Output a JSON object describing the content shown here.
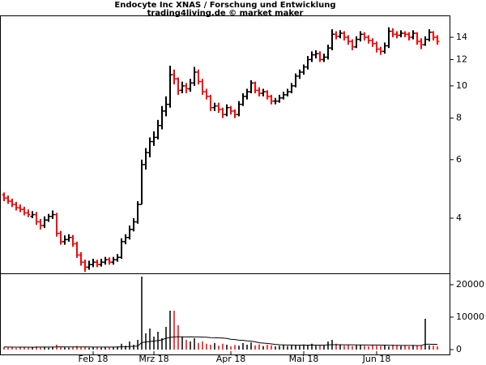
{
  "chart_data": [
    {
      "type": "ohlc",
      "title": "Endocyte Inc XNAS / Forschung und Entwicklung",
      "subtitle": "trading4living.de © market maker",
      "categories": [
        null,
        null,
        null,
        null,
        null,
        null,
        null,
        null,
        null,
        null,
        null,
        null,
        null,
        null,
        null,
        null,
        null,
        null,
        null,
        null,
        null,
        null,
        "Feb 18",
        null,
        null,
        null,
        null,
        null,
        null,
        null,
        null,
        null,
        null,
        null,
        null,
        null,
        null,
        "Mrz 18",
        null,
        null,
        null,
        null,
        null,
        null,
        null,
        null,
        null,
        null,
        null,
        null,
        null,
        null,
        null,
        null,
        null,
        null,
        "Apr 18",
        null,
        null,
        null,
        null,
        null,
        null,
        null,
        null,
        null,
        null,
        null,
        null,
        null,
        null,
        null,
        null,
        null,
        "Mai 18",
        null,
        null,
        null,
        null,
        null,
        null,
        null,
        null,
        null,
        null,
        null,
        null,
        null,
        null,
        null,
        null,
        null,
        "Jun 18",
        null,
        null,
        null,
        null,
        null,
        null,
        null,
        null,
        null,
        null,
        null,
        null,
        null,
        null,
        null
      ],
      "open": [
        4.7,
        4.6,
        4.5,
        4.4,
        4.3,
        4.25,
        4.15,
        4.05,
        4.1,
        3.9,
        3.8,
        3.95,
        4.05,
        4.1,
        3.6,
        3.4,
        3.45,
        3.5,
        3.35,
        3.1,
        2.95,
        2.85,
        2.9,
        2.95,
        2.9,
        2.95,
        3.0,
        2.95,
        3.0,
        3.05,
        3.4,
        3.5,
        3.7,
        3.9,
        4.4,
        5.8,
        6.3,
        6.8,
        7.0,
        7.6,
        8.4,
        8.8,
        10.8,
        10.5,
        9.7,
        10.0,
        9.8,
        10.2,
        11.0,
        10.3,
        9.6,
        9.3,
        8.6,
        8.7,
        8.5,
        8.2,
        8.6,
        8.4,
        8.2,
        8.8,
        9.3,
        9.6,
        10.2,
        9.7,
        9.5,
        9.6,
        9.3,
        9.0,
        9.0,
        9.2,
        9.4,
        9.6,
        10.0,
        10.7,
        11.0,
        11.4,
        12.0,
        12.4,
        12.5,
        12.0,
        12.2,
        13.0,
        14.3,
        14.1,
        14.4,
        14.0,
        13.6,
        13.1,
        13.8,
        14.3,
        14.0,
        13.7,
        13.4,
        12.9,
        12.7,
        13.2,
        14.6,
        14.3,
        14.2,
        14.4,
        14.3,
        14.0,
        14.4,
        13.6,
        13.3,
        13.8,
        14.5,
        14.0
      ],
      "high": [
        4.78,
        4.68,
        4.58,
        4.48,
        4.4,
        4.33,
        4.25,
        4.2,
        4.18,
        3.98,
        4.05,
        4.12,
        4.22,
        4.15,
        3.66,
        3.55,
        3.58,
        3.56,
        3.4,
        3.16,
        3.0,
        2.98,
        3.02,
        3.0,
        3.02,
        3.06,
        3.05,
        3.06,
        3.12,
        3.48,
        3.58,
        3.8,
        4.0,
        4.5,
        6.0,
        6.5,
        7.0,
        7.3,
        7.9,
        8.7,
        9.3,
        11.5,
        11.2,
        10.6,
        10.3,
        10.2,
        10.5,
        11.4,
        11.2,
        10.5,
        9.8,
        9.4,
        8.9,
        8.9,
        8.6,
        8.8,
        8.7,
        8.5,
        9.0,
        9.5,
        9.8,
        10.4,
        10.3,
        9.9,
        9.8,
        9.7,
        9.4,
        9.2,
        9.4,
        9.6,
        9.8,
        10.2,
        10.9,
        11.2,
        11.6,
        12.3,
        12.7,
        12.8,
        12.7,
        12.5,
        13.3,
        14.8,
        14.6,
        14.7,
        14.6,
        14.2,
        13.8,
        14.1,
        14.6,
        14.5,
        14.2,
        13.9,
        13.6,
        13.1,
        13.5,
        15.0,
        14.9,
        14.6,
        14.7,
        14.6,
        14.5,
        14.7,
        14.5,
        13.9,
        14.1,
        14.8,
        14.6,
        14.2
      ],
      "low": [
        4.5,
        4.42,
        4.32,
        4.22,
        4.17,
        4.08,
        4.03,
        4.0,
        3.82,
        3.7,
        3.74,
        3.9,
        3.98,
        3.52,
        3.33,
        3.33,
        3.4,
        3.28,
        3.04,
        2.88,
        2.76,
        2.8,
        2.85,
        2.85,
        2.86,
        2.9,
        2.9,
        2.9,
        2.96,
        3.02,
        3.34,
        3.45,
        3.65,
        3.85,
        4.4,
        5.6,
        6.1,
        6.6,
        6.9,
        7.4,
        8.1,
        8.6,
        10.1,
        9.4,
        9.5,
        9.5,
        9.6,
        10.0,
        10.1,
        9.4,
        9.1,
        8.4,
        8.4,
        8.3,
        8.0,
        8.1,
        8.2,
        8.0,
        8.1,
        8.7,
        9.1,
        9.5,
        9.5,
        9.3,
        9.3,
        9.1,
        8.8,
        8.8,
        8.9,
        9.1,
        9.3,
        9.5,
        9.9,
        10.5,
        10.8,
        11.2,
        11.8,
        12.1,
        11.8,
        11.8,
        12.0,
        12.8,
        13.8,
        13.9,
        13.7,
        13.3,
        12.8,
        13.0,
        13.6,
        13.7,
        13.4,
        13.1,
        12.6,
        12.4,
        12.5,
        13.0,
        14.0,
        13.9,
        14.0,
        14.0,
        13.7,
        13.8,
        13.3,
        12.9,
        13.2,
        13.6,
        13.7,
        13.3
      ],
      "close": [
        4.6,
        4.5,
        4.4,
        4.3,
        4.25,
        4.15,
        4.1,
        4.1,
        3.9,
        3.8,
        3.95,
        4.05,
        4.1,
        3.6,
        3.4,
        3.45,
        3.5,
        3.35,
        3.1,
        2.95,
        2.85,
        2.9,
        2.95,
        2.9,
        2.95,
        3.0,
        2.95,
        3.0,
        3.05,
        3.4,
        3.5,
        3.7,
        3.9,
        4.4,
        5.8,
        6.3,
        6.8,
        7.0,
        7.6,
        8.4,
        8.8,
        10.8,
        10.5,
        9.7,
        10.0,
        9.8,
        10.2,
        11.0,
        10.3,
        9.6,
        9.3,
        8.6,
        8.7,
        8.5,
        8.2,
        8.6,
        8.4,
        8.2,
        8.8,
        9.3,
        9.6,
        10.2,
        9.7,
        9.5,
        9.6,
        9.3,
        9.0,
        9.0,
        9.2,
        9.4,
        9.6,
        10.0,
        10.7,
        11.0,
        11.4,
        12.0,
        12.4,
        12.5,
        12.0,
        12.2,
        13.0,
        14.3,
        14.1,
        14.4,
        14.0,
        13.6,
        13.1,
        13.8,
        14.3,
        14.0,
        13.7,
        13.4,
        12.9,
        12.7,
        13.2,
        14.6,
        14.3,
        14.2,
        14.4,
        14.3,
        14.0,
        14.4,
        13.6,
        13.3,
        13.8,
        14.5,
        14.0,
        13.6
      ],
      "up_color": "#000000",
      "down_color": "#ff0000",
      "log_scale": true,
      "ylim": [
        2.73,
        16.2
      ],
      "yticks": [
        4,
        6,
        8,
        10,
        12,
        14
      ]
    },
    {
      "type": "bar",
      "values": [
        800,
        600,
        700,
        500,
        900,
        700,
        600,
        800,
        1000,
        700,
        900,
        600,
        800,
        1500,
        900,
        700,
        600,
        800,
        1100,
        700,
        900,
        600,
        700,
        800,
        600,
        900,
        700,
        800,
        1000,
        1800,
        1200,
        2500,
        1500,
        3000,
        22500,
        5000,
        6500,
        4000,
        5500,
        3500,
        7000,
        12000,
        12000,
        7500,
        4000,
        3000,
        2500,
        3500,
        2000,
        2500,
        1800,
        1500,
        2000,
        1200,
        1800,
        1500,
        1000,
        1400,
        1200,
        2000,
        1500,
        2200,
        1300,
        1600,
        1100,
        1500,
        1300,
        1000,
        1200,
        1400,
        1100,
        1500,
        1300,
        1200,
        1600,
        1400,
        1800,
        1200,
        1500,
        1300,
        2500,
        3000,
        1800,
        1500,
        1200,
        1400,
        1100,
        1300,
        1500,
        1200,
        1000,
        1400,
        1200,
        1100,
        1300,
        1000,
        1500,
        1200,
        1100,
        1300,
        1000,
        1400,
        1200,
        1100,
        9500,
        1300,
        1200,
        1000
      ],
      "ma_values": [
        800,
        780,
        760,
        740,
        750,
        760,
        740,
        730,
        760,
        770,
        780,
        770,
        780,
        820,
        830,
        820,
        810,
        800,
        810,
        800,
        810,
        800,
        790,
        790,
        780,
        790,
        780,
        790,
        800,
        850,
        870,
        950,
        990,
        1090,
        2150,
        2350,
        2500,
        2650,
        2750,
        3000,
        3500,
        3750,
        3900,
        3950,
        3950,
        3900,
        3950,
        3900,
        3900,
        3850,
        3800,
        3700,
        3650,
        3600,
        3550,
        3450,
        3200,
        3100,
        2900,
        2850,
        2700,
        2600,
        2400,
        2100,
        2000,
        1900,
        1750,
        1600,
        1500,
        1450,
        1400,
        1400,
        1380,
        1380,
        1370,
        1380,
        1400,
        1380,
        1380,
        1390,
        1450,
        1500,
        1500,
        1490,
        1480,
        1470,
        1460,
        1450,
        1440,
        1430,
        1410,
        1400,
        1400,
        1390,
        1380,
        1350,
        1320,
        1300,
        1290,
        1280,
        1270,
        1270,
        1260,
        1250,
        1650,
        1650,
        1640,
        1620
      ],
      "ma_color": "#000000",
      "ylim": [
        0,
        23250
      ],
      "yticks": [
        0,
        10000,
        20000
      ]
    }
  ]
}
